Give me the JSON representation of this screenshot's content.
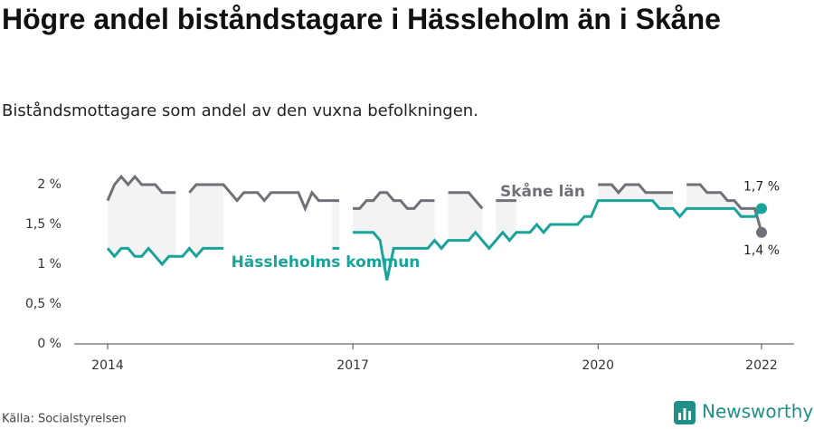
{
  "chart_data": {
    "type": "line",
    "title": "Högre andel biståndstagare i Hässleholm än i Skåne",
    "subtitle": "Biståndsmottagare som andel av den vuxna befolkningen.",
    "source": "Källa: Socialstyrelsen",
    "brand": "Newsworthy",
    "categories": [
      "2014",
      null,
      null,
      null,
      null,
      null,
      null,
      null,
      null,
      null,
      null,
      null,
      null,
      null,
      null,
      null,
      null,
      null,
      null,
      null,
      null,
      null,
      null,
      null,
      null,
      null,
      null,
      null,
      null,
      null,
      null,
      null,
      null,
      null,
      null,
      null,
      "2017",
      null,
      null,
      null,
      null,
      null,
      null,
      null,
      null,
      null,
      null,
      null,
      null,
      null,
      null,
      null,
      null,
      null,
      null,
      null,
      null,
      null,
      null,
      null,
      null,
      null,
      null,
      null,
      null,
      null,
      null,
      null,
      null,
      null,
      null,
      null,
      "2020",
      null,
      null,
      null,
      null,
      null,
      null,
      null,
      null,
      null,
      null,
      null,
      null,
      null,
      null,
      null,
      null,
      null,
      null,
      null,
      null,
      null,
      null,
      null,
      "2022"
    ],
    "ylim": [
      0,
      2.2
    ],
    "yticks": [
      {
        "value": 0,
        "label": "0 %"
      },
      {
        "value": 0.5,
        "label": "0,5 %"
      },
      {
        "value": 1,
        "label": "1 %"
      },
      {
        "value": 1.5,
        "label": "1,5 %"
      },
      {
        "value": 2,
        "label": "2 %"
      }
    ],
    "series": [
      {
        "name": "Skåne län",
        "color": "#707078",
        "values": [
          1.8,
          2.0,
          2.1,
          2.0,
          2.1,
          2.0,
          2.0,
          2.0,
          1.9,
          1.9,
          1.9,
          null,
          1.9,
          2.0,
          2.0,
          2.0,
          2.0,
          2.0,
          1.9,
          1.8,
          1.9,
          1.9,
          1.9,
          1.8,
          1.9,
          1.9,
          1.9,
          1.9,
          1.9,
          1.7,
          1.9,
          1.8,
          1.8,
          1.8,
          1.8,
          null,
          1.7,
          1.7,
          1.8,
          1.8,
          1.9,
          1.9,
          1.8,
          1.8,
          1.7,
          1.7,
          1.8,
          1.8,
          1.8,
          null,
          1.9,
          1.9,
          1.9,
          1.9,
          1.8,
          1.7,
          null,
          1.8,
          1.8,
          1.8,
          1.8,
          null,
          null,
          null,
          null,
          null,
          null,
          null,
          null,
          null,
          null,
          null,
          2.0,
          2.0,
          2.0,
          1.9,
          2.0,
          2.0,
          2.0,
          1.9,
          1.9,
          1.9,
          1.9,
          1.9,
          null,
          2.0,
          2.0,
          2.0,
          1.9,
          1.9,
          1.9,
          1.8,
          1.8,
          1.7,
          1.7,
          1.7,
          1.4
        ],
        "value_labels": [
          null,
          null,
          null,
          null,
          null,
          null,
          null,
          null,
          null,
          null,
          null,
          null,
          null,
          null,
          null,
          null,
          null,
          null,
          null,
          null,
          null,
          null,
          null,
          null,
          null,
          null,
          null,
          null,
          null,
          null,
          null,
          null,
          null,
          null,
          null,
          null,
          null,
          null,
          null,
          null,
          null,
          null,
          null,
          null,
          null,
          null,
          null,
          null,
          null,
          null,
          null,
          null,
          null,
          null,
          null,
          null,
          null,
          null,
          null,
          null,
          null,
          null,
          null,
          null,
          null,
          null,
          null,
          null,
          null,
          null,
          null,
          null,
          null,
          null,
          null,
          null,
          null,
          null,
          null,
          null,
          null,
          null,
          null,
          null,
          null,
          null,
          null,
          null,
          null,
          null,
          null,
          null,
          null,
          null,
          null,
          null,
          "1,4 %"
        ]
      },
      {
        "name": "Hässleholms kommun",
        "color": "#1aa39a",
        "values": [
          1.2,
          1.1,
          1.2,
          1.2,
          1.1,
          1.1,
          1.2,
          1.1,
          1.0,
          1.1,
          1.1,
          1.1,
          1.2,
          1.1,
          1.2,
          1.2,
          1.2,
          1.2,
          null,
          null,
          null,
          null,
          null,
          null,
          null,
          null,
          null,
          null,
          null,
          null,
          null,
          null,
          null,
          1.2,
          1.2,
          null,
          1.4,
          1.4,
          1.4,
          1.4,
          1.3,
          0.8,
          1.2,
          1.2,
          1.2,
          1.2,
          1.2,
          1.2,
          1.3,
          1.2,
          1.3,
          1.3,
          1.3,
          1.3,
          1.4,
          1.3,
          1.2,
          1.3,
          1.4,
          1.3,
          1.4,
          1.4,
          1.4,
          1.5,
          1.4,
          1.5,
          1.5,
          1.5,
          1.5,
          1.5,
          1.6,
          1.6,
          1.8,
          1.8,
          1.8,
          1.8,
          1.8,
          1.8,
          1.8,
          1.8,
          1.8,
          1.7,
          1.7,
          1.7,
          1.6,
          1.7,
          1.7,
          1.7,
          1.7,
          1.7,
          1.7,
          1.7,
          1.7,
          1.6,
          1.6,
          1.6,
          1.7
        ],
        "value_labels": [
          null,
          null,
          null,
          null,
          null,
          null,
          null,
          null,
          null,
          null,
          null,
          null,
          null,
          null,
          null,
          null,
          null,
          null,
          null,
          null,
          null,
          null,
          null,
          null,
          null,
          null,
          null,
          null,
          null,
          null,
          null,
          null,
          null,
          null,
          null,
          null,
          null,
          null,
          null,
          null,
          null,
          null,
          null,
          null,
          null,
          null,
          null,
          null,
          null,
          null,
          null,
          null,
          null,
          null,
          null,
          null,
          null,
          null,
          null,
          null,
          null,
          null,
          null,
          null,
          null,
          null,
          null,
          null,
          null,
          null,
          null,
          null,
          null,
          null,
          null,
          null,
          null,
          null,
          null,
          null,
          null,
          null,
          null,
          null,
          null,
          null,
          null,
          null,
          null,
          null,
          null,
          null,
          null,
          null,
          null,
          null,
          "1,7 %"
        ]
      }
    ]
  }
}
